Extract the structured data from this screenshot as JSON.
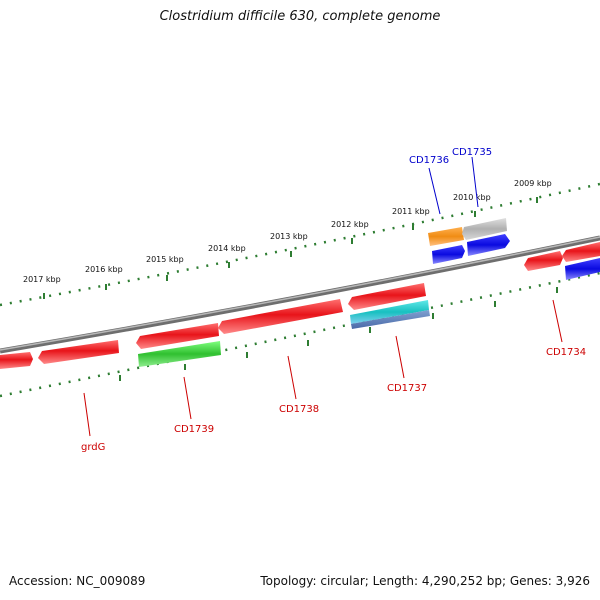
{
  "title": "Clostridium difficile 630, complete genome",
  "accession": "Accession: NC_009089",
  "summary": "Topology: circular; Length: 4,290,252 bp; Genes: 3,926",
  "scale_labels": [
    "2009 kbp",
    "2010 kbp",
    "2011 kbp",
    "2012 kbp",
    "2013 kbp",
    "2014 kbp",
    "2015 kbp",
    "2016 kbp",
    "2017 kbp"
  ],
  "gene_labels": {
    "cd1736": "CD1736",
    "cd1735": "CD1735",
    "cd1734": "CD1734",
    "cd1737": "CD1737",
    "cd1738": "CD1738",
    "cd1739": "CD1739",
    "grdg": "grdG"
  },
  "colors": {
    "backbone": "#7a7a7a",
    "ticks": "#2e7d32",
    "forward_gene": "#e8141a",
    "blue_gene": "#1a1aee",
    "orange_gene": "#f08c14",
    "grey_gene": "#b8b8b8",
    "cyan_gene": "#20c8c8",
    "green_gene": "#3cc83c",
    "label_red": "#cc0000",
    "label_blue": "#0000cc"
  }
}
